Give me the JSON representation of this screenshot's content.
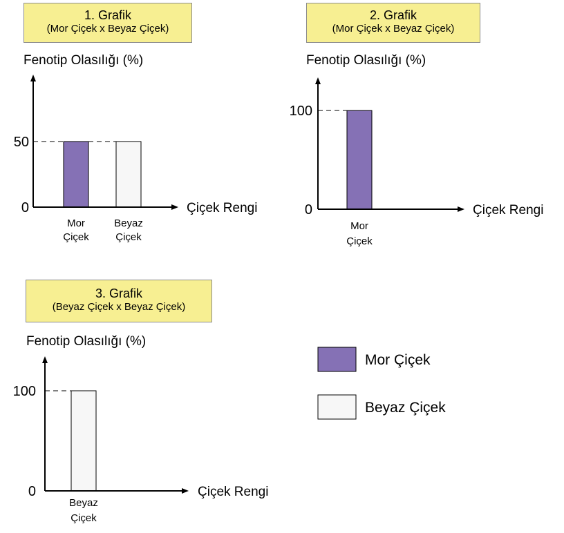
{
  "colors": {
    "purple": "#8571b5",
    "white": "#f7f7f7",
    "title_bg": "#f7ef92"
  },
  "chart_data": [
    {
      "type": "bar",
      "title": "1. Grafik",
      "subtitle": "(Mor Çiçek x Beyaz Çiçek)",
      "ylabel": "Fenotip Olasılığı (%)",
      "xlabel": "Çiçek Rengi",
      "categories": [
        [
          "Mor",
          "Çiçek"
        ],
        [
          "Beyaz",
          "Çiçek"
        ]
      ],
      "values": [
        50,
        50
      ],
      "colors": [
        "#8571b5",
        "#f7f7f7"
      ],
      "yticks": [
        "0",
        "50"
      ],
      "ytick_values": [
        0,
        50
      ],
      "ylim": [
        0,
        100
      ]
    },
    {
      "type": "bar",
      "title": "2. Grafik",
      "subtitle": "(Mor Çiçek x Beyaz Çiçek)",
      "ylabel": "Fenotip Olasılığı (%)",
      "xlabel": "Çiçek Rengi",
      "categories": [
        [
          "Mor",
          "Çiçek"
        ]
      ],
      "values": [
        100
      ],
      "colors": [
        "#8571b5"
      ],
      "yticks": [
        "0",
        "100"
      ],
      "ytick_values": [
        0,
        100
      ],
      "ylim": [
        0,
        100
      ]
    },
    {
      "type": "bar",
      "title": "3. Grafik",
      "subtitle": "(Beyaz Çiçek x Beyaz Çiçek)",
      "ylabel": "Fenotip Olasılığı (%)",
      "xlabel": "Çiçek Rengi",
      "categories": [
        [
          "Beyaz",
          "Çiçek"
        ]
      ],
      "values": [
        100
      ],
      "colors": [
        "#f7f7f7"
      ],
      "yticks": [
        "0",
        "100"
      ],
      "ytick_values": [
        0,
        100
      ],
      "ylim": [
        0,
        100
      ]
    }
  ],
  "legend": [
    {
      "label": "Mor Çiçek",
      "color": "#8571b5"
    },
    {
      "label": "Beyaz Çiçek",
      "color": "#f7f7f7"
    }
  ]
}
